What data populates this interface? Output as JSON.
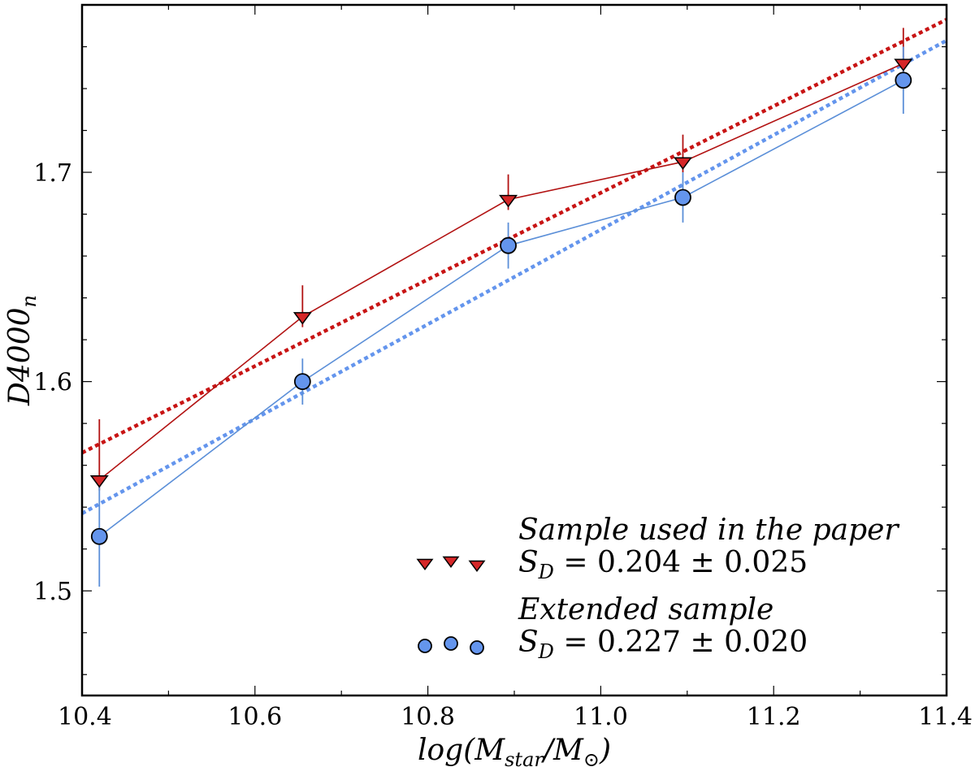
{
  "chart_data": {
    "type": "scatter",
    "title": "",
    "xlabel": "log(M_star/M_⊙)",
    "ylabel": "D4000_n",
    "xlim": [
      10.4,
      11.4
    ],
    "ylim": [
      1.45,
      1.78
    ],
    "x_ticks": [
      10.4,
      10.6,
      10.8,
      11.0,
      11.2,
      11.4
    ],
    "x_tick_labels": [
      "10.4",
      "10.6",
      "10.8",
      "11.0",
      "11.2",
      "11.4"
    ],
    "y_ticks": [
      1.5,
      1.6,
      1.7
    ],
    "y_tick_labels": [
      "1.5",
      "1.6",
      "1.7"
    ],
    "grid": false,
    "legend_position": "bottom-right",
    "series": [
      {
        "name": "Sample used in the paper",
        "stat_prefix": "S",
        "stat_sub": "D",
        "stat_value": "= 0.204 ± 0.025",
        "marker": "triangle-down",
        "color": "#d62728",
        "line_color": "#b21212",
        "x": [
          10.42,
          10.655,
          10.893,
          11.095,
          11.35
        ],
        "y": [
          1.553,
          1.631,
          1.687,
          1.705,
          1.752
        ],
        "err_low": [
          0.005,
          0.005,
          0.005,
          0.005,
          0.005
        ],
        "err_high": [
          0.029,
          0.015,
          0.012,
          0.013,
          0.017
        ],
        "fit": {
          "x": [
            10.4,
            11.4
          ],
          "y": [
            1.566,
            1.773
          ],
          "style": "dotted",
          "color": "#c81414"
        }
      },
      {
        "name": "Extended sample",
        "stat_prefix": "S",
        "stat_sub": "D",
        "stat_value": "= 0.227 ± 0.020",
        "marker": "circle",
        "color": "#6495ed",
        "line_color": "#5b8fd8",
        "x": [
          10.42,
          10.655,
          10.893,
          11.095,
          11.35
        ],
        "y": [
          1.526,
          1.6,
          1.665,
          1.688,
          1.744
        ],
        "err_low": [
          0.024,
          0.011,
          0.011,
          0.012,
          0.016
        ],
        "err_high": [
          0.024,
          0.011,
          0.011,
          0.012,
          0.016
        ],
        "fit": {
          "x": [
            10.4,
            11.4
          ],
          "y": [
            1.537,
            1.763
          ],
          "style": "dotted",
          "color": "#6495ed"
        }
      }
    ]
  }
}
